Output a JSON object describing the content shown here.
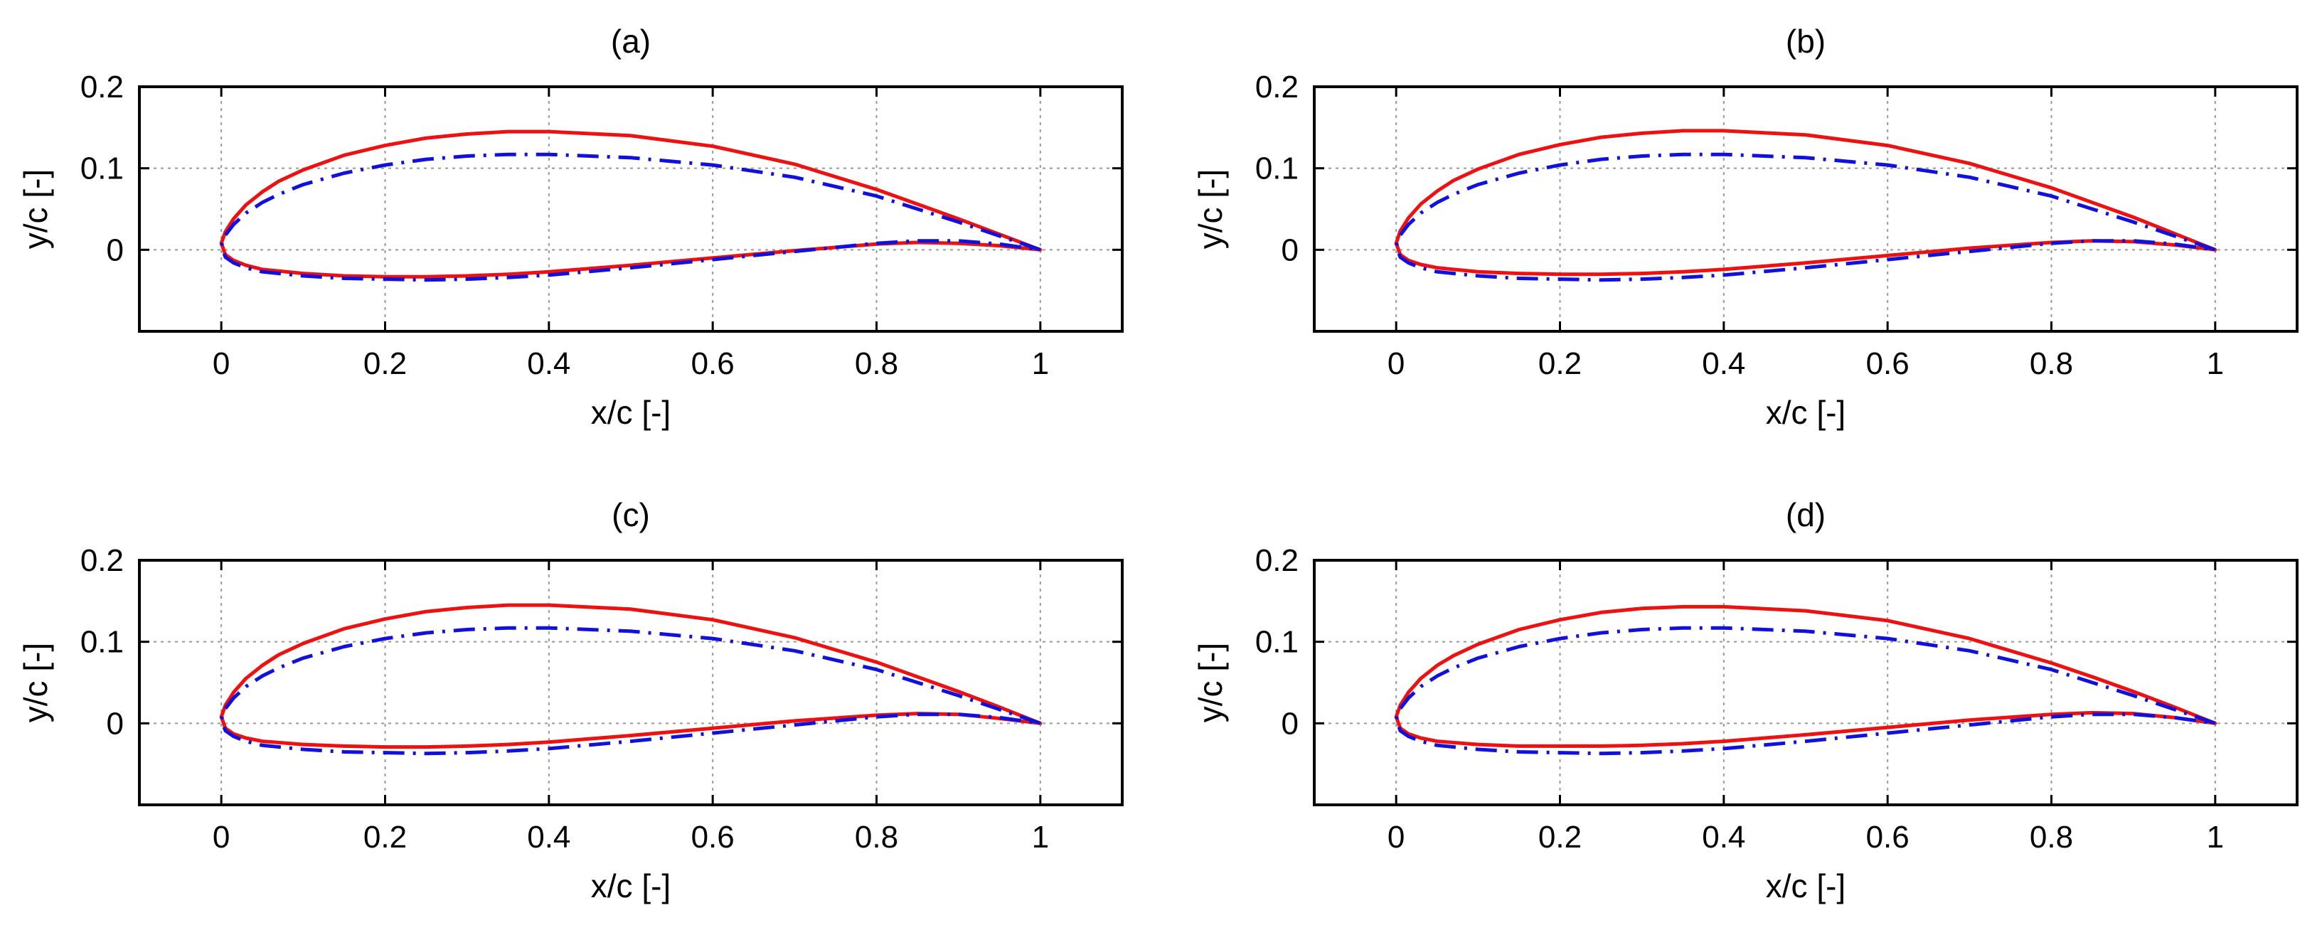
{
  "colors": {
    "series_1": "#ee1111",
    "series_2": "#1111dd",
    "grid": "#999999",
    "frame": "#000000"
  },
  "chart_data": [
    {
      "type": "line",
      "title": "(a)",
      "xlabel": "x/c [-]",
      "ylabel": "y/c [-]",
      "xlim": [
        -0.1,
        1.1
      ],
      "ylim": [
        -0.1,
        0.2
      ],
      "xticks": [
        0,
        0.2,
        0.4,
        0.6,
        0.8,
        1
      ],
      "xtick_labels": [
        "0",
        "0.2",
        "0.4",
        "0.6",
        "0.8",
        "1"
      ],
      "yticks": [
        0,
        0.1,
        0.2
      ],
      "ytick_labels": [
        "0",
        "0.1",
        "0.2"
      ],
      "grid": true,
      "series": [
        {
          "style": "solid",
          "color": "#ee1111",
          "x": [
            1,
            0.95,
            0.9,
            0.85,
            0.8,
            0.7,
            0.6,
            0.5,
            0.4,
            0.35,
            0.3,
            0.25,
            0.2,
            0.15,
            0.1,
            0.07,
            0.05,
            0.03,
            0.015,
            0.005,
            0,
            0.005,
            0.015,
            0.03,
            0.05,
            0.1,
            0.15,
            0.2,
            0.25,
            0.3,
            0.35,
            0.4,
            0.5,
            0.6,
            0.7,
            0.8,
            0.85,
            0.9,
            0.95,
            1
          ],
          "y": [
            0,
            0.019,
            0.038,
            0.056,
            0.074,
            0.105,
            0.127,
            0.14,
            0.145,
            0.145,
            0.142,
            0.137,
            0.128,
            0.116,
            0.098,
            0.084,
            0.071,
            0.055,
            0.038,
            0.022,
            0.008,
            -0.006,
            -0.013,
            -0.019,
            -0.024,
            -0.029,
            -0.032,
            -0.033,
            -0.033,
            -0.032,
            -0.03,
            -0.027,
            -0.019,
            -0.01,
            -0.001,
            0.007,
            0.009,
            0.008,
            0.005,
            0
          ]
        },
        {
          "style": "dash-dot",
          "color": "#1111dd",
          "x": [
            1,
            0.95,
            0.9,
            0.85,
            0.8,
            0.7,
            0.6,
            0.5,
            0.4,
            0.35,
            0.3,
            0.25,
            0.2,
            0.15,
            0.1,
            0.07,
            0.05,
            0.03,
            0.015,
            0.005,
            0,
            0.005,
            0.015,
            0.03,
            0.05,
            0.1,
            0.15,
            0.2,
            0.25,
            0.3,
            0.35,
            0.4,
            0.5,
            0.6,
            0.7,
            0.8,
            0.85,
            0.9,
            0.95,
            1
          ],
          "y": [
            0,
            0.017,
            0.034,
            0.05,
            0.066,
            0.089,
            0.104,
            0.113,
            0.117,
            0.117,
            0.115,
            0.111,
            0.104,
            0.094,
            0.08,
            0.068,
            0.058,
            0.045,
            0.031,
            0.018,
            0.005,
            -0.009,
            -0.016,
            -0.022,
            -0.027,
            -0.032,
            -0.035,
            -0.036,
            -0.037,
            -0.036,
            -0.034,
            -0.031,
            -0.022,
            -0.012,
            -0.002,
            0.008,
            0.011,
            0.011,
            0.007,
            0
          ]
        }
      ]
    },
    {
      "type": "line",
      "title": "(b)",
      "xlabel": "x/c [-]",
      "ylabel": "y/c [-]",
      "xlim": [
        -0.1,
        1.1
      ],
      "ylim": [
        -0.1,
        0.2
      ],
      "xticks": [
        0,
        0.2,
        0.4,
        0.6,
        0.8,
        1
      ],
      "xtick_labels": [
        "0",
        "0.2",
        "0.4",
        "0.6",
        "0.8",
        "1"
      ],
      "yticks": [
        0,
        0.1,
        0.2
      ],
      "ytick_labels": [
        "0",
        "0.1",
        "0.2"
      ],
      "grid": true,
      "series": [
        {
          "style": "solid",
          "color": "#ee1111",
          "x": [
            1,
            0.95,
            0.9,
            0.85,
            0.8,
            0.7,
            0.6,
            0.5,
            0.4,
            0.35,
            0.3,
            0.25,
            0.2,
            0.15,
            0.1,
            0.07,
            0.05,
            0.03,
            0.015,
            0.005,
            0,
            0.005,
            0.015,
            0.03,
            0.05,
            0.1,
            0.15,
            0.2,
            0.25,
            0.3,
            0.35,
            0.4,
            0.5,
            0.6,
            0.7,
            0.8,
            0.85,
            0.9,
            0.95,
            1
          ],
          "y": [
            0,
            0.02,
            0.04,
            0.058,
            0.076,
            0.106,
            0.128,
            0.141,
            0.146,
            0.146,
            0.143,
            0.138,
            0.129,
            0.117,
            0.099,
            0.085,
            0.072,
            0.056,
            0.039,
            0.023,
            0.008,
            -0.006,
            -0.013,
            -0.018,
            -0.022,
            -0.027,
            -0.029,
            -0.03,
            -0.03,
            -0.029,
            -0.027,
            -0.024,
            -0.016,
            -0.007,
            0.002,
            0.009,
            0.011,
            0.01,
            0.006,
            0
          ]
        },
        {
          "style": "dash-dot",
          "color": "#1111dd",
          "x": [
            1,
            0.95,
            0.9,
            0.85,
            0.8,
            0.7,
            0.6,
            0.5,
            0.4,
            0.35,
            0.3,
            0.25,
            0.2,
            0.15,
            0.1,
            0.07,
            0.05,
            0.03,
            0.015,
            0.005,
            0,
            0.005,
            0.015,
            0.03,
            0.05,
            0.1,
            0.15,
            0.2,
            0.25,
            0.3,
            0.35,
            0.4,
            0.5,
            0.6,
            0.7,
            0.8,
            0.85,
            0.9,
            0.95,
            1
          ],
          "y": [
            0,
            0.017,
            0.034,
            0.05,
            0.066,
            0.089,
            0.104,
            0.113,
            0.117,
            0.117,
            0.115,
            0.111,
            0.104,
            0.094,
            0.08,
            0.068,
            0.058,
            0.045,
            0.031,
            0.018,
            0.005,
            -0.009,
            -0.016,
            -0.022,
            -0.027,
            -0.032,
            -0.035,
            -0.036,
            -0.037,
            -0.036,
            -0.034,
            -0.031,
            -0.022,
            -0.012,
            -0.002,
            0.008,
            0.011,
            0.011,
            0.007,
            0
          ]
        }
      ]
    },
    {
      "type": "line",
      "title": "(c)",
      "xlabel": "x/c [-]",
      "ylabel": "y/c [-]",
      "xlim": [
        -0.1,
        1.1
      ],
      "ylim": [
        -0.1,
        0.2
      ],
      "xticks": [
        0,
        0.2,
        0.4,
        0.6,
        0.8,
        1
      ],
      "xtick_labels": [
        "0",
        "0.2",
        "0.4",
        "0.6",
        "0.8",
        "1"
      ],
      "yticks": [
        0,
        0.1,
        0.2
      ],
      "ytick_labels": [
        "0",
        "0.1",
        "0.2"
      ],
      "grid": true,
      "series": [
        {
          "style": "solid",
          "color": "#ee1111",
          "x": [
            1,
            0.95,
            0.9,
            0.85,
            0.8,
            0.7,
            0.6,
            0.5,
            0.4,
            0.35,
            0.3,
            0.25,
            0.2,
            0.15,
            0.1,
            0.07,
            0.05,
            0.03,
            0.015,
            0.005,
            0,
            0.005,
            0.015,
            0.03,
            0.05,
            0.1,
            0.15,
            0.2,
            0.25,
            0.3,
            0.35,
            0.4,
            0.5,
            0.6,
            0.7,
            0.8,
            0.85,
            0.9,
            0.95,
            1
          ],
          "y": [
            0,
            0.02,
            0.039,
            0.057,
            0.075,
            0.105,
            0.127,
            0.14,
            0.145,
            0.145,
            0.142,
            0.137,
            0.128,
            0.116,
            0.098,
            0.084,
            0.071,
            0.055,
            0.038,
            0.022,
            0.008,
            -0.006,
            -0.013,
            -0.018,
            -0.022,
            -0.026,
            -0.028,
            -0.029,
            -0.029,
            -0.028,
            -0.026,
            -0.023,
            -0.015,
            -0.006,
            0.003,
            0.01,
            0.012,
            0.011,
            0.006,
            0
          ]
        },
        {
          "style": "dash-dot",
          "color": "#1111dd",
          "x": [
            1,
            0.95,
            0.9,
            0.85,
            0.8,
            0.7,
            0.6,
            0.5,
            0.4,
            0.35,
            0.3,
            0.25,
            0.2,
            0.15,
            0.1,
            0.07,
            0.05,
            0.03,
            0.015,
            0.005,
            0,
            0.005,
            0.015,
            0.03,
            0.05,
            0.1,
            0.15,
            0.2,
            0.25,
            0.3,
            0.35,
            0.4,
            0.5,
            0.6,
            0.7,
            0.8,
            0.85,
            0.9,
            0.95,
            1
          ],
          "y": [
            0,
            0.017,
            0.034,
            0.05,
            0.066,
            0.089,
            0.104,
            0.113,
            0.117,
            0.117,
            0.115,
            0.111,
            0.104,
            0.094,
            0.08,
            0.068,
            0.058,
            0.045,
            0.031,
            0.018,
            0.005,
            -0.009,
            -0.016,
            -0.022,
            -0.027,
            -0.032,
            -0.035,
            -0.036,
            -0.037,
            -0.036,
            -0.034,
            -0.031,
            -0.022,
            -0.012,
            -0.002,
            0.008,
            0.011,
            0.011,
            0.007,
            0
          ]
        }
      ]
    },
    {
      "type": "line",
      "title": "(d)",
      "xlabel": "x/c [-]",
      "ylabel": "y/c [-]",
      "xlim": [
        -0.1,
        1.1
      ],
      "ylim": [
        -0.1,
        0.2
      ],
      "xticks": [
        0,
        0.2,
        0.4,
        0.6,
        0.8,
        1
      ],
      "xtick_labels": [
        "0",
        "0.2",
        "0.4",
        "0.6",
        "0.8",
        "1"
      ],
      "yticks": [
        0,
        0.1,
        0.2
      ],
      "ytick_labels": [
        "0",
        "0.1",
        "0.2"
      ],
      "grid": true,
      "series": [
        {
          "style": "solid",
          "color": "#ee1111",
          "x": [
            1,
            0.95,
            0.9,
            0.85,
            0.8,
            0.7,
            0.6,
            0.5,
            0.4,
            0.35,
            0.3,
            0.25,
            0.2,
            0.15,
            0.1,
            0.07,
            0.05,
            0.03,
            0.015,
            0.005,
            0,
            0.005,
            0.015,
            0.03,
            0.05,
            0.1,
            0.15,
            0.2,
            0.25,
            0.3,
            0.35,
            0.4,
            0.5,
            0.6,
            0.7,
            0.8,
            0.85,
            0.9,
            0.95,
            1
          ],
          "y": [
            0,
            0.02,
            0.039,
            0.057,
            0.074,
            0.104,
            0.126,
            0.138,
            0.143,
            0.143,
            0.141,
            0.136,
            0.127,
            0.115,
            0.097,
            0.083,
            0.071,
            0.055,
            0.038,
            0.022,
            0.008,
            -0.006,
            -0.013,
            -0.018,
            -0.022,
            -0.026,
            -0.028,
            -0.028,
            -0.028,
            -0.027,
            -0.025,
            -0.022,
            -0.014,
            -0.005,
            0.004,
            0.011,
            0.013,
            0.012,
            0.007,
            0
          ]
        },
        {
          "style": "dash-dot",
          "color": "#1111dd",
          "x": [
            1,
            0.95,
            0.9,
            0.85,
            0.8,
            0.7,
            0.6,
            0.5,
            0.4,
            0.35,
            0.3,
            0.25,
            0.2,
            0.15,
            0.1,
            0.07,
            0.05,
            0.03,
            0.015,
            0.005,
            0,
            0.005,
            0.015,
            0.03,
            0.05,
            0.1,
            0.15,
            0.2,
            0.25,
            0.3,
            0.35,
            0.4,
            0.5,
            0.6,
            0.7,
            0.8,
            0.85,
            0.9,
            0.95,
            1
          ],
          "y": [
            0,
            0.017,
            0.034,
            0.05,
            0.066,
            0.089,
            0.104,
            0.113,
            0.117,
            0.117,
            0.115,
            0.111,
            0.104,
            0.094,
            0.08,
            0.068,
            0.058,
            0.045,
            0.031,
            0.018,
            0.005,
            -0.009,
            -0.016,
            -0.022,
            -0.027,
            -0.032,
            -0.035,
            -0.036,
            -0.037,
            -0.036,
            -0.034,
            -0.031,
            -0.022,
            -0.012,
            -0.002,
            0.008,
            0.011,
            0.011,
            0.007,
            0
          ]
        }
      ]
    }
  ]
}
